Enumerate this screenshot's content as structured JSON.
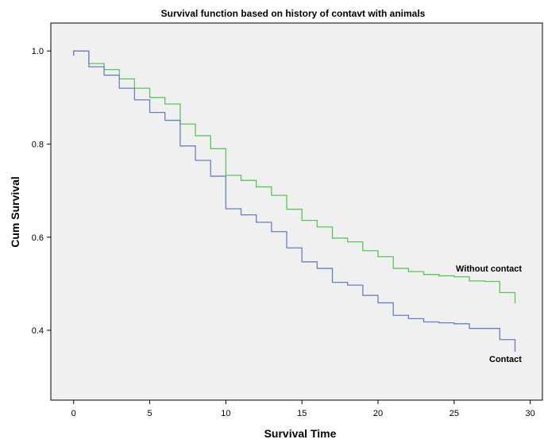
{
  "chart_data": {
    "type": "line",
    "title": "Survival function based on history of contavt with animals",
    "xlabel": "Survival Time",
    "ylabel": "Cum Survival",
    "xlim": [
      -1.5,
      30.8
    ],
    "ylim": [
      0.25,
      1.06
    ],
    "xticks": [
      0,
      5,
      10,
      15,
      20,
      25,
      30
    ],
    "yticks": [
      0.4,
      0.6,
      0.8,
      1.0
    ],
    "xtick_labels": [
      "0",
      "5",
      "10",
      "15",
      "20",
      "25",
      "30"
    ],
    "ytick_labels": [
      "0.4",
      "0.6",
      "0.8",
      "1.0"
    ],
    "grid": false,
    "plot_background": "#f0f0f0",
    "step": true,
    "series": [
      {
        "name": "Without contact",
        "color": "#5bc55b",
        "x": [
          0,
          1,
          2,
          3,
          4,
          5,
          6,
          7,
          8,
          9,
          10,
          11,
          12,
          13,
          14,
          15,
          16,
          17,
          18,
          19,
          20,
          21,
          22,
          23,
          24,
          25,
          26,
          27,
          28,
          29
        ],
        "y": [
          1.0,
          0.973,
          0.96,
          0.94,
          0.92,
          0.9,
          0.886,
          0.843,
          0.818,
          0.79,
          0.733,
          0.722,
          0.708,
          0.69,
          0.66,
          0.636,
          0.622,
          0.598,
          0.59,
          0.571,
          0.558,
          0.533,
          0.526,
          0.52,
          0.517,
          0.515,
          0.506,
          0.505,
          0.481,
          0.47
        ]
      },
      {
        "name": "Contact",
        "color": "#6b7ec2",
        "x": [
          0,
          1,
          2,
          3,
          4,
          5,
          6,
          7,
          8,
          9,
          10,
          11,
          12,
          13,
          14,
          15,
          16,
          17,
          18,
          19,
          20,
          21,
          22,
          23,
          24,
          25,
          26,
          27,
          28,
          29
        ],
        "y": [
          1.0,
          0.966,
          0.948,
          0.92,
          0.895,
          0.868,
          0.851,
          0.796,
          0.765,
          0.731,
          0.661,
          0.648,
          0.632,
          0.612,
          0.577,
          0.547,
          0.533,
          0.503,
          0.497,
          0.475,
          0.459,
          0.432,
          0.425,
          0.418,
          0.416,
          0.414,
          0.404,
          0.404,
          0.38,
          0.366
        ]
      }
    ]
  }
}
